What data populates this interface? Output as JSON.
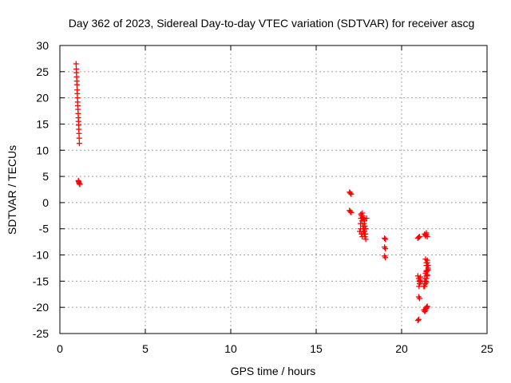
{
  "chart_data": {
    "type": "scatter",
    "title": "Day 362 of 2023, Sidereal Day-to-day VTEC variation (SDTVAR) for receiver ascg",
    "xlabel": "GPS time / hours",
    "ylabel": "SDTVAR / TECUs",
    "xlim": [
      0,
      25
    ],
    "ylim": [
      -25,
      30
    ],
    "x_ticks": [
      0,
      5,
      10,
      15,
      20,
      25
    ],
    "y_ticks": [
      30,
      25,
      20,
      15,
      10,
      5,
      0,
      -5,
      -10,
      -15,
      -20,
      -25
    ],
    "x_tick_labels": [
      "0",
      "5",
      "10",
      "15",
      "20",
      "25"
    ],
    "y_tick_labels": [
      "30",
      "25",
      "20",
      "15",
      "10",
      "5",
      "0",
      "-5",
      "-10",
      "-15",
      "-20",
      "-25"
    ],
    "grid": true,
    "marker": "+",
    "marker_color": "#ff0000",
    "series": [
      {
        "name": "SDTVAR",
        "x": [
          0.95,
          0.96,
          0.97,
          0.98,
          0.99,
          1.0,
          1.01,
          1.02,
          1.03,
          1.04,
          1.05,
          1.06,
          1.07,
          1.08,
          1.09,
          1.1,
          1.11,
          1.12,
          1.13,
          1.14,
          1.08,
          1.1,
          1.12,
          1.14,
          1.17,
          16.95,
          17.0,
          17.05,
          16.95,
          17.0,
          17.05,
          17.55,
          17.6,
          17.62,
          17.65,
          17.68,
          17.7,
          17.72,
          17.75,
          17.78,
          17.8,
          17.82,
          17.85,
          17.88,
          17.9,
          17.6,
          17.65,
          17.7,
          17.75,
          17.8,
          17.85,
          17.9,
          17.95,
          17.62,
          17.72,
          17.82,
          17.7,
          17.8,
          19.0,
          19.05,
          19.0,
          19.05,
          19.0,
          19.05,
          20.95,
          21.0,
          21.05,
          21.05,
          21.1,
          20.95,
          21.0,
          21.05,
          20.95,
          21.0,
          21.0,
          21.05,
          21.1,
          21.02,
          21.07,
          21.3,
          21.35,
          21.4,
          21.45,
          21.5,
          21.55,
          21.35,
          21.4,
          21.45,
          21.5,
          21.4,
          21.45,
          21.5,
          21.55,
          21.35,
          21.4,
          21.45,
          21.5,
          21.35,
          21.4,
          21.45,
          21.5,
          21.4,
          21.45,
          21.3,
          21.35,
          21.4,
          21.45,
          21.5,
          21.4,
          21.45,
          21.5,
          21.4,
          21.45,
          21.5,
          21.55,
          21.45,
          21.5,
          21.45
        ],
        "y": [
          26.5,
          25.5,
          24.8,
          24.0,
          23.2,
          22.5,
          21.5,
          20.8,
          20.0,
          19.2,
          18.5,
          17.8,
          17.0,
          16.2,
          15.5,
          14.8,
          14.0,
          13.2,
          12.3,
          11.3,
          4.2,
          4.0,
          3.8,
          3.6,
          3.5,
          2.0,
          1.8,
          1.6,
          -1.5,
          -1.7,
          -1.9,
          -5.5,
          -4.0,
          -3.0,
          -2.5,
          -3.5,
          -2.0,
          -4.5,
          -3.0,
          -5.0,
          -4.0,
          -5.5,
          -4.5,
          -6.0,
          -5.0,
          -5.0,
          -6.0,
          -6.5,
          -5.5,
          -6.0,
          -6.5,
          -7.0,
          -3.0,
          -2.2,
          -2.8,
          -3.5,
          -2.5,
          -3.2,
          -6.8,
          -7.0,
          -8.5,
          -8.8,
          -10.2,
          -10.5,
          -14.0,
          -14.5,
          -15.0,
          -15.5,
          -14.2,
          -6.8,
          -6.6,
          -6.5,
          -22.5,
          -22.3,
          -18.0,
          -18.3,
          -15.2,
          -16.0,
          -14.8,
          -16.0,
          -15.5,
          -15.0,
          -14.0,
          -13.0,
          -12.5,
          -14.5,
          -13.5,
          -12.0,
          -11.5,
          -15.0,
          -13.0,
          -11.0,
          -12.0,
          -16.0,
          -15.5,
          -14.5,
          -13.8,
          -6.0,
          -6.2,
          -5.8,
          -6.5,
          -6.4,
          -6.1,
          -20.5,
          -20.8,
          -20.3,
          -20.0,
          -19.8,
          -20.6,
          -20.2,
          -19.9,
          -10.8,
          -11.5,
          -12.0,
          -12.8,
          -13.2,
          -14.0,
          -15.2
        ]
      }
    ]
  }
}
